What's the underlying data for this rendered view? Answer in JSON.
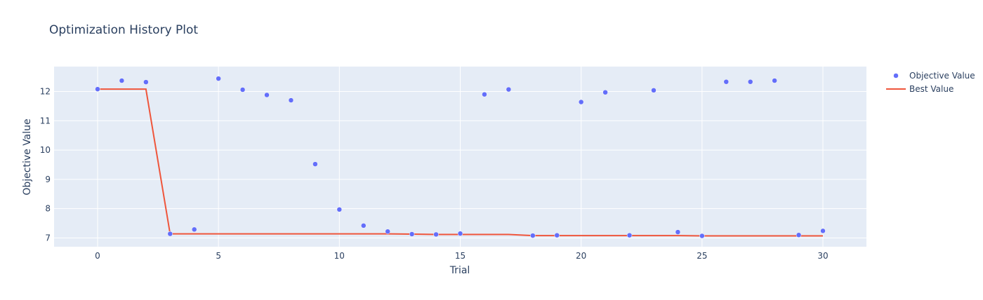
{
  "chart_data": {
    "type": "scatter",
    "title": "Optimization History Plot",
    "xlabel": "Trial",
    "ylabel": "Objective Value",
    "xlim": [
      -1.8,
      31.8
    ],
    "ylim": [
      6.7,
      12.85
    ],
    "xticks": [
      0,
      5,
      10,
      15,
      20,
      25,
      30
    ],
    "yticks": [
      7,
      8,
      9,
      10,
      11,
      12
    ],
    "grid": true,
    "legend_position": "top-right",
    "series": [
      {
        "name": "Objective Value",
        "kind": "markers",
        "color": "#636efa",
        "x": [
          0,
          1,
          2,
          3,
          4,
          5,
          6,
          7,
          8,
          9,
          10,
          11,
          12,
          13,
          14,
          15,
          16,
          17,
          18,
          19,
          20,
          21,
          22,
          23,
          24,
          25,
          26,
          27,
          28,
          29,
          30
        ],
        "y": [
          12.08,
          12.37,
          12.32,
          7.14,
          7.29,
          12.44,
          12.06,
          11.88,
          11.7,
          9.52,
          7.97,
          7.42,
          7.22,
          7.13,
          7.12,
          7.15,
          11.9,
          12.07,
          7.08,
          7.09,
          11.64,
          11.97,
          7.09,
          12.04,
          7.2,
          7.07,
          12.33,
          12.33,
          12.37,
          7.1,
          7.24
        ]
      },
      {
        "name": "Best Value",
        "kind": "line",
        "color": "#ef553b",
        "x": [
          0,
          1,
          2,
          3,
          4,
          5,
          6,
          7,
          8,
          9,
          10,
          11,
          12,
          13,
          14,
          15,
          16,
          17,
          18,
          19,
          20,
          21,
          22,
          23,
          24,
          25,
          26,
          27,
          28,
          29,
          30
        ],
        "y": [
          12.08,
          12.08,
          12.08,
          7.14,
          7.14,
          7.14,
          7.14,
          7.14,
          7.14,
          7.14,
          7.14,
          7.14,
          7.14,
          7.13,
          7.12,
          7.12,
          7.12,
          7.12,
          7.08,
          7.08,
          7.08,
          7.08,
          7.08,
          7.08,
          7.08,
          7.07,
          7.07,
          7.07,
          7.07,
          7.07,
          7.07
        ]
      }
    ]
  }
}
